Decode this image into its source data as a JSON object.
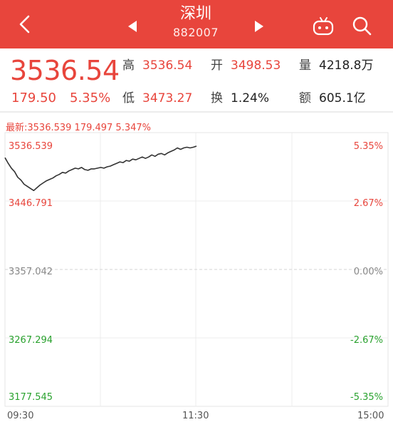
{
  "header": {
    "title": "深圳",
    "code": "882007",
    "icons": [
      "back-icon",
      "prev-arrow-icon",
      "next-arrow-icon",
      "chat-icon",
      "search-icon"
    ]
  },
  "quote": {
    "price": "3536.54",
    "change": "179.50",
    "change_pct": "5.35%",
    "high_label": "高",
    "high": "3536.54",
    "open_label": "开",
    "open": "3498.53",
    "volume_label": "量",
    "volume": "4218.8万",
    "low_label": "低",
    "low": "3473.27",
    "turnover_label": "换",
    "turnover": "1.24%",
    "amount_label": "额",
    "amount": "605.1亿"
  },
  "colors": {
    "up": "#e8453c",
    "down": "#2aa22f",
    "flat": "#888888",
    "header_bg": "#e8453c"
  },
  "chart_data": {
    "type": "line",
    "latest_text": "最新:3536.539 179.497 5.347%",
    "y_labels_left": [
      "3536.539",
      "3446.791",
      "3357.042",
      "3267.294",
      "3177.545"
    ],
    "y_labels_right": [
      "5.35%",
      "2.67%",
      "0.00%",
      "-2.67%",
      "-5.35%"
    ],
    "x_labels": [
      "09:30",
      "11:30",
      "15:00"
    ],
    "ylim": [
      3177.545,
      3536.539
    ],
    "prev_close": 3357.042,
    "session_minutes": 240,
    "x": [
      0,
      2,
      4,
      6,
      8,
      10,
      12,
      14,
      16,
      18,
      20,
      22,
      24,
      26,
      28,
      30,
      32,
      34,
      36,
      38,
      40,
      42,
      44,
      46,
      48,
      50,
      52,
      54,
      56,
      58,
      60,
      62,
      64,
      66,
      68,
      70,
      72,
      74,
      76,
      78,
      80,
      82,
      84,
      86,
      88,
      90,
      92,
      94,
      96,
      98,
      100,
      102,
      104,
      106,
      108,
      110,
      112,
      114,
      116,
      118,
      120
    ],
    "y": [
      3520,
      3512,
      3505,
      3500,
      3492,
      3488,
      3482,
      3479,
      3476,
      3473,
      3477,
      3481,
      3484,
      3487,
      3489,
      3491,
      3494,
      3496,
      3499,
      3498,
      3501,
      3503,
      3505,
      3504,
      3506,
      3503,
      3502,
      3504,
      3504,
      3505,
      3506,
      3505,
      3507,
      3508,
      3510,
      3512,
      3514,
      3513,
      3516,
      3515,
      3518,
      3517,
      3519,
      3521,
      3519,
      3521,
      3524,
      3522,
      3525,
      3526,
      3524,
      3527,
      3529,
      3531,
      3534,
      3532,
      3534,
      3535,
      3534,
      3535,
      3536.5
    ]
  }
}
